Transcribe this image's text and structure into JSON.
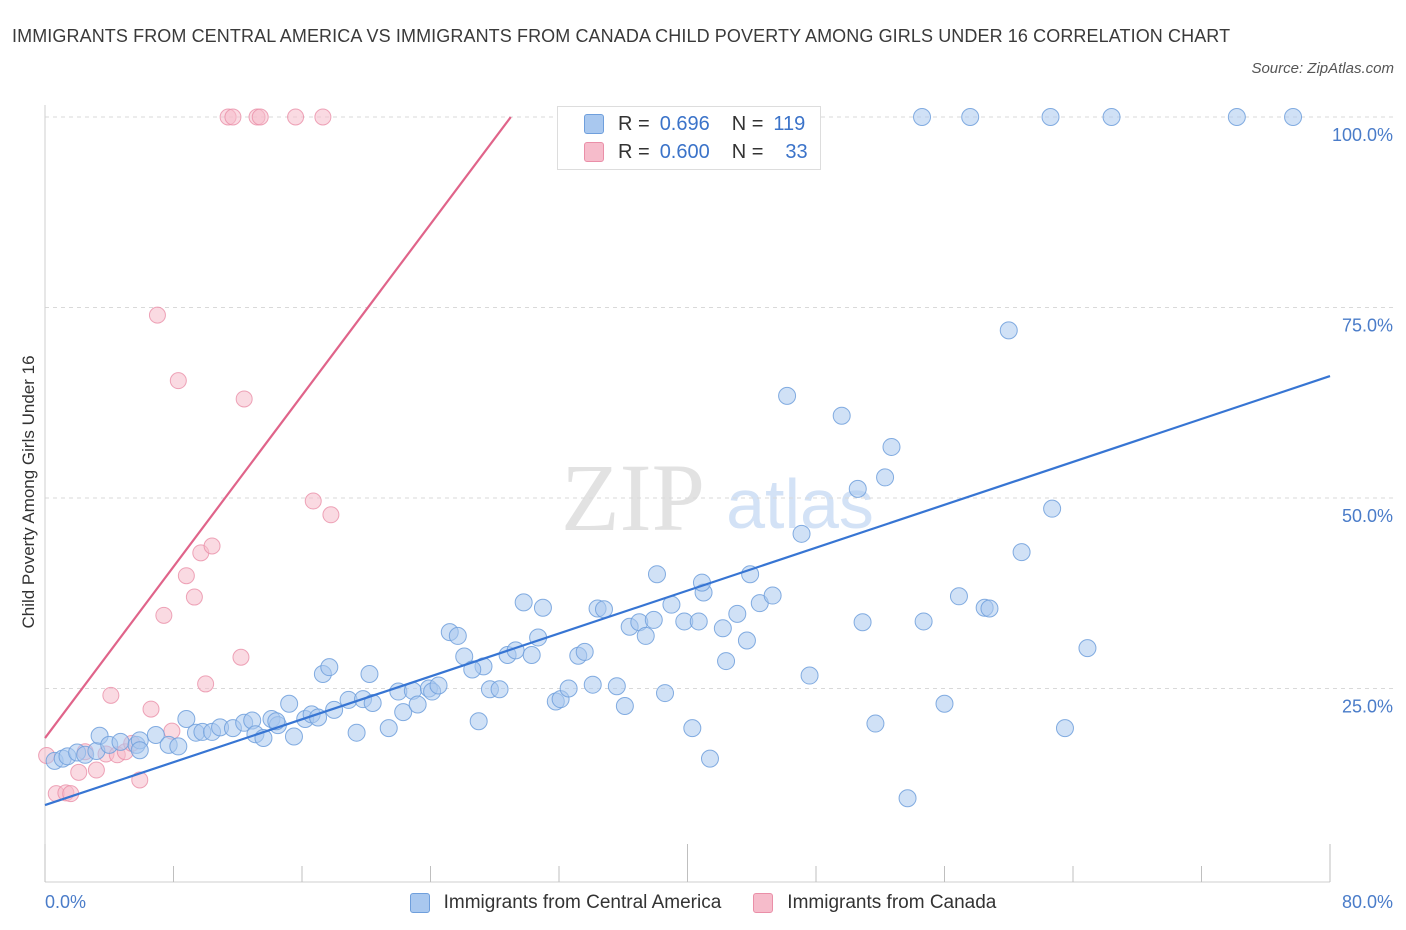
{
  "header": {
    "title": "IMMIGRANTS FROM CENTRAL AMERICA VS IMMIGRANTS FROM CANADA CHILD POVERTY AMONG GIRLS UNDER 16 CORRELATION CHART",
    "source": "Source: ZipAtlas.com"
  },
  "legend": {
    "row1": {
      "r_label": "R =",
      "r_value": "0.696",
      "n_label": "N =",
      "n_value": "119"
    },
    "row2": {
      "r_label": "R =",
      "r_value": "0.600",
      "n_label": "N =",
      "n_value": "33"
    }
  },
  "bottom_legend": {
    "series1": "Immigrants from Central America",
    "series2": "Immigrants from Canada"
  },
  "watermark": {
    "zip": "ZIP",
    "atlas": "atlas"
  },
  "colors": {
    "blue_fill": "#a9c8ef",
    "blue_stroke": "#6f9fdc",
    "blue_line": "#3775d3",
    "pink_fill": "#f6bccb",
    "pink_stroke": "#ea8fa8",
    "pink_line": "#e0648a",
    "tick_text": "#4a7cc9",
    "grid": "#d9d9d9"
  },
  "chart_data": {
    "type": "scatter",
    "title": "IMMIGRANTS FROM CENTRAL AMERICA VS IMMIGRANTS FROM CANADA CHILD POVERTY AMONG GIRLS UNDER 16 CORRELATION CHART",
    "xlabel": "",
    "ylabel": "Child Poverty Among Girls Under 16",
    "xlim": [
      0,
      80
    ],
    "ylim": [
      0,
      100
    ],
    "x_tick_labels": [
      "0.0%",
      "80.0%"
    ],
    "y_ticks": [
      25,
      50,
      75,
      100
    ],
    "y_tick_labels": [
      "25.0%",
      "50.0%",
      "75.0%",
      "100.0%"
    ],
    "grid": "horizontal dashed",
    "legend_placement": "top-center",
    "series": [
      {
        "name": "Immigrants from Central America",
        "color": "#6f9fdc",
        "r": 0.696,
        "n": 119,
        "trend": {
          "x": [
            0,
            80
          ],
          "y": [
            9.7,
            66.0
          ]
        },
        "points": [
          [
            0.6,
            15.5
          ],
          [
            1.1,
            15.8
          ],
          [
            1.4,
            16.1
          ],
          [
            2.0,
            16.6
          ],
          [
            2.5,
            16.3
          ],
          [
            3.2,
            16.8
          ],
          [
            3.4,
            18.8
          ],
          [
            4.0,
            17.6
          ],
          [
            4.7,
            18.0
          ],
          [
            5.7,
            17.6
          ],
          [
            5.9,
            18.2
          ],
          [
            6.9,
            18.9
          ],
          [
            7.7,
            17.6
          ],
          [
            8.8,
            21.0
          ],
          [
            9.4,
            19.2
          ],
          [
            9.8,
            19.3
          ],
          [
            10.4,
            19.3
          ],
          [
            10.9,
            19.9
          ],
          [
            11.7,
            19.8
          ],
          [
            12.4,
            20.5
          ],
          [
            12.9,
            20.8
          ],
          [
            13.1,
            19.0
          ],
          [
            13.6,
            18.5
          ],
          [
            14.1,
            21.0
          ],
          [
            14.5,
            20.2
          ],
          [
            15.2,
            23.0
          ],
          [
            15.5,
            18.7
          ],
          [
            16.2,
            21.0
          ],
          [
            16.6,
            21.6
          ],
          [
            17.3,
            26.9
          ],
          [
            17.7,
            27.8
          ],
          [
            18.0,
            22.2
          ],
          [
            18.9,
            23.5
          ],
          [
            19.4,
            19.2
          ],
          [
            19.8,
            23.6
          ],
          [
            20.2,
            26.9
          ],
          [
            20.4,
            23.1
          ],
          [
            21.4,
            19.8
          ],
          [
            22.0,
            24.6
          ],
          [
            22.3,
            21.9
          ],
          [
            22.9,
            24.7
          ],
          [
            23.2,
            22.9
          ],
          [
            23.9,
            25.0
          ],
          [
            24.1,
            24.6
          ],
          [
            24.5,
            25.4
          ],
          [
            25.2,
            32.4
          ],
          [
            25.7,
            31.9
          ],
          [
            26.1,
            29.2
          ],
          [
            27.0,
            20.7
          ],
          [
            27.3,
            27.9
          ],
          [
            27.7,
            24.9
          ],
          [
            28.3,
            24.9
          ],
          [
            28.8,
            29.4
          ],
          [
            29.3,
            30.0
          ],
          [
            29.8,
            36.3
          ],
          [
            30.3,
            29.4
          ],
          [
            30.7,
            31.7
          ],
          [
            31.0,
            35.6
          ],
          [
            31.8,
            23.3
          ],
          [
            32.1,
            23.6
          ],
          [
            32.6,
            25.0
          ],
          [
            33.2,
            29.3
          ],
          [
            33.6,
            29.8
          ],
          [
            34.1,
            25.5
          ],
          [
            34.4,
            35.5
          ],
          [
            34.8,
            35.4
          ],
          [
            35.6,
            25.3
          ],
          [
            36.1,
            22.7
          ],
          [
            36.4,
            33.1
          ],
          [
            37.0,
            33.7
          ],
          [
            37.4,
            31.9
          ],
          [
            37.9,
            34.0
          ],
          [
            38.1,
            40.0
          ],
          [
            38.6,
            24.4
          ],
          [
            39.0,
            36.0
          ],
          [
            39.8,
            33.8
          ],
          [
            40.3,
            19.8
          ],
          [
            40.7,
            33.8
          ],
          [
            41.0,
            37.6
          ],
          [
            41.4,
            15.8
          ],
          [
            42.2,
            32.9
          ],
          [
            42.4,
            28.6
          ],
          [
            43.1,
            34.8
          ],
          [
            43.7,
            31.3
          ],
          [
            43.9,
            40.0
          ],
          [
            44.5,
            36.2
          ],
          [
            45.3,
            37.2
          ],
          [
            46.2,
            63.4
          ],
          [
            47.1,
            45.3
          ],
          [
            47.6,
            26.7
          ],
          [
            49.6,
            60.8
          ],
          [
            50.6,
            51.2
          ],
          [
            50.9,
            33.7
          ],
          [
            51.7,
            20.4
          ],
          [
            52.3,
            52.7
          ],
          [
            52.7,
            56.7
          ],
          [
            53.7,
            10.6
          ],
          [
            54.7,
            33.8
          ],
          [
            56.0,
            23.0
          ],
          [
            56.9,
            37.1
          ],
          [
            58.5,
            35.6
          ],
          [
            58.8,
            35.5
          ],
          [
            60.0,
            72.0
          ],
          [
            60.8,
            42.9
          ],
          [
            62.7,
            48.6
          ],
          [
            63.5,
            19.8
          ],
          [
            64.9,
            30.3
          ],
          [
            54.6,
            100
          ],
          [
            57.6,
            100
          ],
          [
            62.6,
            100
          ],
          [
            66.4,
            100
          ],
          [
            74.2,
            100
          ],
          [
            77.7,
            100
          ],
          [
            5.9,
            16.9
          ],
          [
            8.3,
            17.4
          ],
          [
            14.4,
            20.7
          ],
          [
            17.0,
            21.2
          ],
          [
            26.6,
            27.5
          ],
          [
            40.9,
            38.9
          ]
        ]
      },
      {
        "name": "Immigrants from Canada",
        "color": "#ea8fa8",
        "r": 0.6,
        "n": 33,
        "trend": {
          "x": [
            0,
            29.0
          ],
          "y": [
            18.5,
            100
          ]
        },
        "points": [
          [
            0.1,
            16.2
          ],
          [
            0.7,
            11.2
          ],
          [
            1.3,
            11.3
          ],
          [
            1.6,
            11.2
          ],
          [
            2.1,
            14.0
          ],
          [
            2.5,
            16.7
          ],
          [
            3.2,
            14.3
          ],
          [
            3.8,
            16.4
          ],
          [
            4.1,
            24.1
          ],
          [
            4.5,
            16.3
          ],
          [
            5.0,
            16.7
          ],
          [
            5.4,
            17.8
          ],
          [
            5.9,
            13.0
          ],
          [
            6.6,
            22.3
          ],
          [
            7.0,
            74.0
          ],
          [
            7.4,
            34.6
          ],
          [
            7.9,
            19.4
          ],
          [
            8.3,
            65.4
          ],
          [
            8.8,
            39.8
          ],
          [
            9.3,
            37.0
          ],
          [
            9.7,
            42.8
          ],
          [
            10.0,
            25.6
          ],
          [
            10.4,
            43.7
          ],
          [
            11.4,
            100
          ],
          [
            11.7,
            100
          ],
          [
            12.2,
            29.1
          ],
          [
            12.4,
            63.0
          ],
          [
            13.2,
            100
          ],
          [
            13.4,
            100
          ],
          [
            15.6,
            100
          ],
          [
            16.7,
            49.6
          ],
          [
            17.3,
            100
          ],
          [
            17.8,
            47.8
          ]
        ]
      }
    ]
  }
}
